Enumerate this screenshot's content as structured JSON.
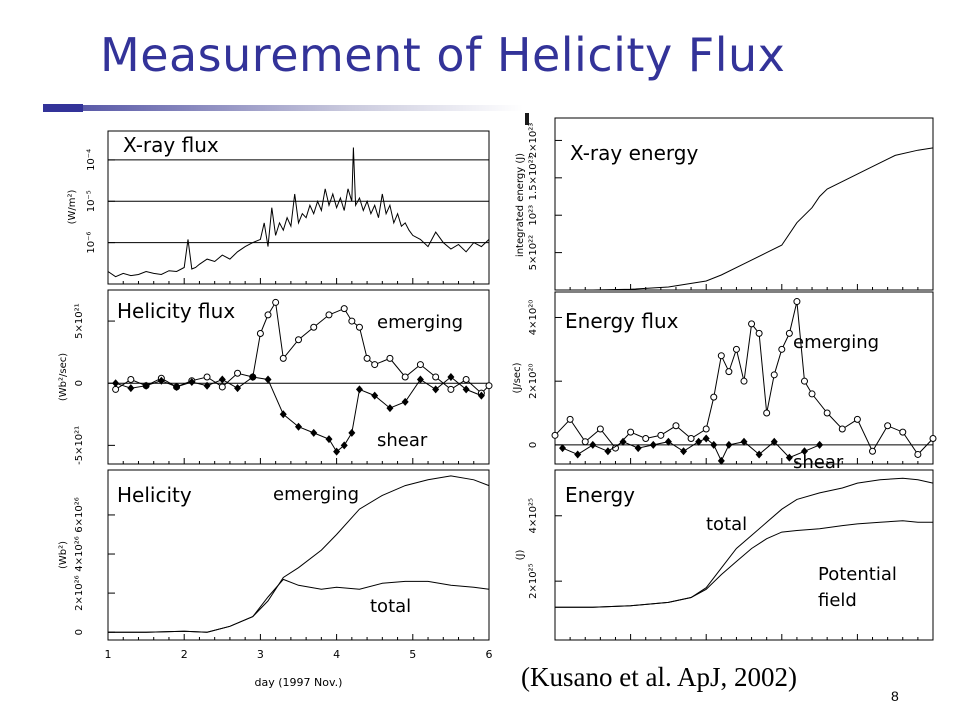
{
  "slide": {
    "title": "Measurement of Helicity Flux",
    "citation": "(Kusano et al. ApJ, 2002)",
    "page_number": "8",
    "title_color": "#333399"
  },
  "chart_data": [
    {
      "id": "xray-flux",
      "type": "line",
      "title": "X-ray flux",
      "ylabel": "(W/m²)",
      "yscale": "log",
      "ylim": [
        1e-07,
        0.0005
      ],
      "xlim": [
        1,
        6
      ],
      "yticks": [
        {
          "v": 1e-06,
          "label": "10⁻⁶"
        },
        {
          "v": 1e-05,
          "label": "10⁻⁵"
        },
        {
          "v": 0.0001,
          "label": "10⁻⁴"
        }
      ],
      "hlines": [
        1e-06,
        1e-05,
        0.0001
      ],
      "x": [
        1.0,
        1.1,
        1.2,
        1.3,
        1.4,
        1.5,
        1.6,
        1.7,
        1.8,
        1.9,
        2.0,
        2.05,
        2.1,
        2.15,
        2.2,
        2.3,
        2.4,
        2.5,
        2.6,
        2.7,
        2.8,
        2.9,
        3.0,
        3.05,
        3.1,
        3.15,
        3.2,
        3.25,
        3.3,
        3.35,
        3.4,
        3.45,
        3.5,
        3.55,
        3.6,
        3.65,
        3.7,
        3.75,
        3.8,
        3.85,
        3.9,
        3.95,
        4.0,
        4.05,
        4.1,
        4.15,
        4.2,
        4.22,
        4.25,
        4.3,
        4.35,
        4.4,
        4.45,
        4.5,
        4.55,
        4.6,
        4.65,
        4.7,
        4.75,
        4.8,
        4.85,
        4.9,
        4.95,
        5.0,
        5.1,
        5.2,
        5.3,
        5.4,
        5.5,
        5.6,
        5.7,
        5.8,
        5.9,
        6.0
      ],
      "values": [
        2e-07,
        1.5e-07,
        1.8e-07,
        1.6e-07,
        1.7e-07,
        2e-07,
        1.8e-07,
        1.7e-07,
        2.1e-07,
        2e-07,
        2.5e-07,
        1.2e-06,
        2.3e-07,
        2.5e-07,
        3e-07,
        4e-07,
        3.5e-07,
        5e-07,
        4e-07,
        6e-07,
        8e-07,
        1e-06,
        1.2e-06,
        3e-06,
        8e-07,
        7e-06,
        1.5e-06,
        3e-06,
        2e-06,
        4e-06,
        2.5e-06,
        1.5e-05,
        3e-06,
        5e-06,
        4e-06,
        8e-06,
        5e-06,
        1e-05,
        6e-06,
        2e-05,
        8e-06,
        1.5e-05,
        7e-06,
        1.2e-05,
        6e-06,
        2e-05,
        1e-05,
        0.0002,
        8e-06,
        1.2e-05,
        6e-06,
        1e-05,
        5e-06,
        8e-06,
        4e-06,
        1.5e-05,
        5e-06,
        8e-06,
        3e-06,
        5e-06,
        2.5e-06,
        3e-06,
        2e-06,
        1.5e-06,
        1.2e-06,
        8e-07,
        1.8e-06,
        1e-06,
        7e-07,
        9e-07,
        6e-07,
        1e-06,
        8e-07,
        1.2e-06
      ]
    },
    {
      "id": "xray-energy",
      "type": "line",
      "title": "X-ray energy",
      "ylabel": "integrated energy (J)",
      "ylim": [
        0,
        2.3e+23
      ],
      "xlim": [
        1,
        6
      ],
      "yticks": [
        {
          "v": 5e+22,
          "label": "5×10²²"
        },
        {
          "v": 1e+23,
          "label": "10²³"
        },
        {
          "v": 1.5e+23,
          "label": "1.5×10²³"
        },
        {
          "v": 2e+23,
          "label": "2×10²³"
        }
      ],
      "x": [
        1.0,
        1.5,
        2.0,
        2.5,
        3.0,
        3.2,
        3.5,
        3.8,
        4.0,
        4.2,
        4.4,
        4.5,
        4.6,
        4.8,
        5.0,
        5.2,
        5.5,
        5.8,
        6.0
      ],
      "values": [
        0,
        0,
        1e+21,
        4e+21,
        1.2e+22,
        2e+22,
        3.5e+22,
        5e+22,
        6e+22,
        9e+22,
        1.1e+23,
        1.25e+23,
        1.35e+23,
        1.45e+23,
        1.55e+23,
        1.65e+23,
        1.8e+23,
        1.87e+23,
        1.9e+23
      ]
    },
    {
      "id": "helicity-flux",
      "type": "line",
      "title": "Helicity flux",
      "ylabel": "(Wb²/sec)",
      "ylim": [
        -6.5e+21,
        7.5e+21
      ],
      "xlim": [
        1,
        6
      ],
      "yticks": [
        {
          "v": -5e+21,
          "label": "-5×10²¹"
        },
        {
          "v": 0,
          "label": "0"
        },
        {
          "v": 5e+21,
          "label": "5×10²¹"
        }
      ],
      "hlines": [
        0
      ],
      "series": [
        {
          "name": "emerging",
          "marker": "open-circle",
          "x": [
            1.1,
            1.3,
            1.5,
            1.7,
            1.9,
            2.1,
            2.3,
            2.5,
            2.7,
            2.9,
            3.0,
            3.1,
            3.2,
            3.3,
            3.5,
            3.7,
            3.9,
            4.1,
            4.2,
            4.3,
            4.4,
            4.5,
            4.7,
            4.9,
            5.1,
            5.3,
            5.5,
            5.7,
            5.9,
            6.0
          ],
          "values": [
            -5e+20,
            3e+20,
            -2e+20,
            4e+20,
            -3e+20,
            2e+20,
            5e+20,
            -3e+20,
            8e+20,
            5e+20,
            4e+21,
            5.5e+21,
            6.5e+21,
            2e+21,
            3.5e+21,
            4.5e+21,
            5.5e+21,
            6e+21,
            5e+21,
            4.5e+21,
            2e+21,
            1.5e+21,
            2e+21,
            5e+20,
            1.5e+21,
            5e+20,
            -5e+20,
            3e+20,
            -8e+20,
            -2e+20
          ]
        },
        {
          "name": "shear",
          "marker": "filled-diamond",
          "x": [
            1.1,
            1.3,
            1.5,
            1.7,
            1.9,
            2.1,
            2.3,
            2.5,
            2.7,
            2.9,
            3.1,
            3.3,
            3.5,
            3.7,
            3.9,
            4.0,
            4.1,
            4.2,
            4.3,
            4.5,
            4.7,
            4.9,
            5.1,
            5.3,
            5.5,
            5.7,
            5.9
          ],
          "values": [
            0,
            -4e+20,
            -2e+20,
            2e+20,
            -3e+20,
            1e+20,
            -2e+20,
            3e+20,
            -4e+20,
            5e+20,
            3e+20,
            -2.5e+21,
            -3.5e+21,
            -4e+21,
            -4.5e+21,
            -5.5e+21,
            -5e+21,
            -4e+21,
            -5e+20,
            -1e+21,
            -2e+21,
            -1.5e+21,
            3e+20,
            -5e+20,
            5e+20,
            -5e+20,
            -1e+21
          ]
        }
      ]
    },
    {
      "id": "energy-flux",
      "type": "line",
      "title": "Energy flux",
      "ylabel": "(J/sec)",
      "ylim": [
        -6e+19,
        4.8e+20
      ],
      "xlim": [
        1,
        6
      ],
      "yticks": [
        {
          "v": 0,
          "label": "0"
        },
        {
          "v": 2e+20,
          "label": "2×10²⁰"
        },
        {
          "v": 4e+20,
          "label": "4×10²⁰"
        }
      ],
      "hlines": [
        0
      ],
      "series": [
        {
          "name": "emerging",
          "marker": "open-circle",
          "x": [
            1.0,
            1.2,
            1.4,
            1.6,
            1.8,
            2.0,
            2.2,
            2.4,
            2.6,
            2.8,
            3.0,
            3.1,
            3.2,
            3.3,
            3.4,
            3.5,
            3.6,
            3.7,
            3.8,
            3.9,
            4.0,
            4.1,
            4.2,
            4.3,
            4.4,
            4.6,
            4.8,
            5.0,
            5.2,
            5.4,
            5.6,
            5.8,
            6.0
          ],
          "values": [
            3e+19,
            8e+19,
            1e+19,
            5e+19,
            -1e+19,
            4e+19,
            2e+19,
            3e+19,
            6e+19,
            2e+19,
            5e+19,
            1.5e+20,
            2.8e+20,
            2.3e+20,
            3e+20,
            2e+20,
            3.8e+20,
            3.5e+20,
            1e+20,
            2.2e+20,
            3e+20,
            3.5e+20,
            4.5e+20,
            2e+20,
            1.6e+20,
            1e+20,
            5e+19,
            8e+19,
            -2e+19,
            6e+19,
            4e+19,
            -3e+19,
            2e+19
          ]
        },
        {
          "name": "shear",
          "marker": "filled-diamond",
          "x": [
            1.1,
            1.3,
            1.5,
            1.7,
            1.9,
            2.1,
            2.3,
            2.5,
            2.7,
            2.9,
            3.0,
            3.1,
            3.2,
            3.3,
            3.5,
            3.7,
            3.9,
            4.1,
            4.3,
            4.5
          ],
          "values": [
            -1e+19,
            -3e+19,
            0,
            -2e+19,
            1e+19,
            -1e+19,
            0,
            1e+19,
            -2e+19,
            1e+19,
            2e+19,
            0,
            -5e+19,
            0,
            1e+19,
            -3e+19,
            1e+19,
            -4e+19,
            -2e+19,
            0
          ]
        }
      ]
    },
    {
      "id": "helicity",
      "type": "line",
      "title": "Helicity",
      "ylabel": "(Wb²)",
      "ylim": [
        -4e+25,
        8.3e+26
      ],
      "xlim": [
        1,
        6
      ],
      "yticks": [
        {
          "v": 0,
          "label": "0"
        },
        {
          "v": 2e+26,
          "label": "2×10²⁶"
        },
        {
          "v": 4e+26,
          "label": "4×10²⁶"
        },
        {
          "v": 6e+26,
          "label": "6×10²⁶"
        }
      ],
      "series": [
        {
          "name": "emerging",
          "x": [
            1.0,
            1.5,
            2.0,
            2.3,
            2.6,
            2.9,
            3.1,
            3.3,
            3.5,
            3.8,
            4.0,
            4.3,
            4.6,
            4.9,
            5.2,
            5.5,
            5.8,
            6.0
          ],
          "values": [
            0,
            0,
            5e+24,
            0,
            3e+25,
            8e+25,
            1.6e+26,
            2.8e+26,
            3.3e+26,
            4.2e+26,
            5e+26,
            6.3e+26,
            7e+26,
            7.5e+26,
            7.8e+26,
            8e+26,
            7.8e+26,
            7.5e+26
          ]
        },
        {
          "name": "total",
          "x": [
            1.0,
            1.5,
            2.0,
            2.3,
            2.6,
            2.9,
            3.1,
            3.3,
            3.5,
            3.8,
            4.0,
            4.3,
            4.6,
            4.9,
            5.2,
            5.5,
            5.8,
            6.0
          ],
          "values": [
            0,
            0,
            5e+24,
            0,
            3e+25,
            8e+25,
            1.8e+26,
            2.7e+26,
            2.4e+26,
            2.2e+26,
            2.3e+26,
            2.2e+26,
            2.5e+26,
            2.6e+26,
            2.6e+26,
            2.4e+26,
            2.3e+26,
            2.2e+26
          ]
        }
      ]
    },
    {
      "id": "energy",
      "type": "line",
      "title": "Energy",
      "ylabel": "(J)",
      "ylim": [
        2e+24,
        5.4e+25
      ],
      "xlim": [
        1,
        6
      ],
      "yticks": [
        {
          "v": 2e+25,
          "label": "2×10²⁵"
        },
        {
          "v": 4e+25,
          "label": "4×10²⁵"
        }
      ],
      "series": [
        {
          "name": "total",
          "x": [
            1.0,
            1.5,
            2.0,
            2.5,
            2.8,
            3.0,
            3.2,
            3.4,
            3.6,
            3.8,
            4.0,
            4.2,
            4.5,
            4.8,
            5.0,
            5.3,
            5.6,
            5.8,
            6.0
          ],
          "values": [
            1.2e+25,
            1.2e+25,
            1.25e+25,
            1.35e+25,
            1.5e+25,
            1.8e+25,
            2.4e+25,
            3e+25,
            3.4e+25,
            3.8e+25,
            4.2e+25,
            4.5e+25,
            4.7e+25,
            4.85e+25,
            5e+25,
            5.1e+25,
            5.15e+25,
            5.1e+25,
            5e+25
          ]
        },
        {
          "name": "Potential field",
          "x": [
            1.0,
            1.5,
            2.0,
            2.5,
            2.8,
            3.0,
            3.2,
            3.4,
            3.6,
            3.8,
            4.0,
            4.2,
            4.5,
            4.8,
            5.0,
            5.3,
            5.6,
            5.8,
            6.0
          ],
          "values": [
            1.2e+25,
            1.2e+25,
            1.25e+25,
            1.35e+25,
            1.5e+25,
            1.75e+25,
            2.2e+25,
            2.6e+25,
            3e+25,
            3.3e+25,
            3.5e+25,
            3.55e+25,
            3.6e+25,
            3.7e+25,
            3.75e+25,
            3.8e+25,
            3.85e+25,
            3.8e+25,
            3.8e+25
          ]
        }
      ]
    }
  ],
  "shared_x_axis": {
    "label": "day (1997 Nov.)",
    "ticks": [
      {
        "v": 1,
        "label": "1"
      },
      {
        "v": 2,
        "label": "2"
      },
      {
        "v": 3,
        "label": "3"
      },
      {
        "v": 4,
        "label": "4"
      },
      {
        "v": 5,
        "label": "5"
      },
      {
        "v": 6,
        "label": "6"
      }
    ]
  }
}
